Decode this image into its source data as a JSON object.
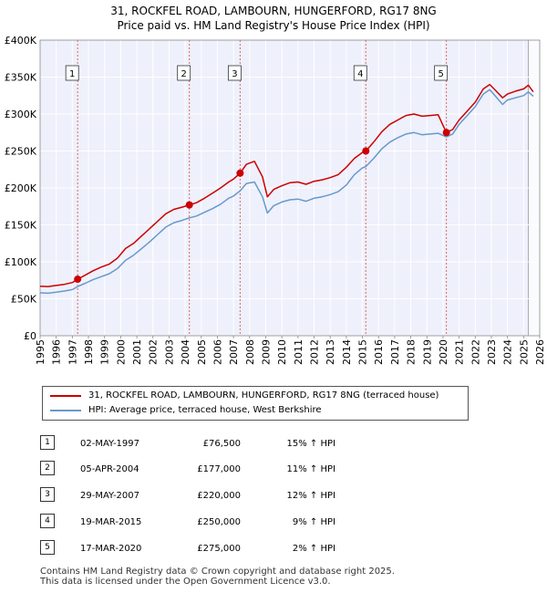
{
  "title_line1": "31, ROCKFEL ROAD, LAMBOURN, HUNGERFORD, RG17 8NG",
  "title_line2": "Price paid vs. HM Land Registry's House Price Index (HPI)",
  "legend": [
    {
      "label": "31, ROCKFEL ROAD, LAMBOURN, HUNGERFORD, RG17 8NG (terraced house)",
      "color": "#cc0000"
    },
    {
      "label": "HPI: Average price, terraced house, West Berkshire",
      "color": "#6699cc"
    }
  ],
  "sales": [
    {
      "id": "1",
      "date": "02-MAY-1997",
      "price": "£76,500",
      "hpi": "15% ↑ HPI"
    },
    {
      "id": "2",
      "date": "05-APR-2004",
      "price": "£177,000",
      "hpi": "11% ↑ HPI"
    },
    {
      "id": "3",
      "date": "29-MAY-2007",
      "price": "£220,000",
      "hpi": "12% ↑ HPI"
    },
    {
      "id": "4",
      "date": "19-MAR-2015",
      "price": "£250,000",
      "hpi": "9% ↑ HPI"
    },
    {
      "id": "5",
      "date": "17-MAR-2020",
      "price": "£275,000",
      "hpi": "2% ↑ HPI"
    }
  ],
  "footer_line1": "Contains HM Land Registry data © Crown copyright and database right 2025.",
  "footer_line2": "This data is licensed under the Open Government Licence v3.0.",
  "colors": {
    "property": "#cc0000",
    "hpi": "#6699cc",
    "plot_bg": "#eef0fb",
    "marker_line": "#dd6666"
  },
  "chart_data": {
    "type": "line",
    "title": "31, ROCKFEL ROAD, LAMBOURN, HUNGERFORD, RG17 8NG",
    "subtitle": "Price paid vs. HM Land Registry's House Price Index (HPI)",
    "xlabel": "",
    "ylabel": "",
    "xlim": [
      1995,
      2026
    ],
    "ylim": [
      0,
      400000
    ],
    "x_ticks": [
      "1995",
      "1996",
      "1997",
      "1998",
      "1999",
      "2000",
      "2001",
      "2002",
      "2003",
      "2004",
      "2005",
      "2006",
      "2007",
      "2008",
      "2009",
      "2010",
      "2011",
      "2012",
      "2013",
      "2014",
      "2015",
      "2016",
      "2017",
      "2018",
      "2019",
      "2020",
      "2021",
      "2022",
      "2023",
      "2024",
      "2025",
      "2026"
    ],
    "y_ticks": [
      {
        "value": 0,
        "label": "£0"
      },
      {
        "value": 50000,
        "label": "£50K"
      },
      {
        "value": 100000,
        "label": "£100K"
      },
      {
        "value": 150000,
        "label": "£150K"
      },
      {
        "value": 200000,
        "label": "£200K"
      },
      {
        "value": 250000,
        "label": "£250K"
      },
      {
        "value": 300000,
        "label": "£300K"
      },
      {
        "value": 350000,
        "label": "£350K"
      },
      {
        "value": 400000,
        "label": "£400K"
      }
    ],
    "grid": true,
    "series": [
      {
        "name": "31, ROCKFEL ROAD, LAMBOURN, HUNGERFORD, RG17 8NG (terraced house)",
        "x": [
          1995.0,
          1995.5,
          1996.0,
          1996.5,
          1997.0,
          1997.33,
          1997.8,
          1998.3,
          1998.8,
          1999.3,
          1999.8,
          2000.3,
          2000.8,
          2001.3,
          2001.8,
          2002.3,
          2002.8,
          2003.3,
          2003.8,
          2004.26,
          2004.7,
          2005.2,
          2005.7,
          2006.2,
          2006.7,
          2007.0,
          2007.41,
          2007.8,
          2008.3,
          2008.8,
          2009.1,
          2009.5,
          2010.0,
          2010.5,
          2011.0,
          2011.5,
          2012.0,
          2012.5,
          2013.0,
          2013.5,
          2014.0,
          2014.5,
          2015.0,
          2015.21,
          2015.7,
          2016.2,
          2016.7,
          2017.2,
          2017.7,
          2018.2,
          2018.7,
          2019.2,
          2019.7,
          2020.21,
          2020.6,
          2021.0,
          2021.5,
          2022.0,
          2022.5,
          2022.9,
          2023.3,
          2023.7,
          2024.0,
          2024.5,
          2025.0,
          2025.3,
          2025.6
        ],
        "y": [
          67000,
          66500,
          68000,
          69500,
          72000,
          76500,
          82000,
          88000,
          93000,
          97000,
          105000,
          118000,
          125000,
          135000,
          145000,
          155000,
          165000,
          171000,
          174000,
          177000,
          180000,
          186000,
          193000,
          200000,
          208000,
          212000,
          220000,
          232000,
          236000,
          215000,
          188000,
          198000,
          203000,
          207000,
          208000,
          205000,
          209000,
          211000,
          214000,
          218000,
          228000,
          240000,
          248000,
          250000,
          262000,
          276000,
          286000,
          292000,
          298000,
          300000,
          297000,
          298000,
          299000,
          275000,
          279000,
          292000,
          304000,
          316000,
          334000,
          340000,
          331000,
          322000,
          327000,
          331000,
          334000,
          339000,
          330000
        ]
      },
      {
        "name": "HPI: Average price, terraced house, West Berkshire",
        "x": [
          1995.0,
          1995.5,
          1996.0,
          1996.5,
          1997.0,
          1997.33,
          1997.8,
          1998.3,
          1998.8,
          1999.3,
          1999.8,
          2000.3,
          2000.8,
          2001.3,
          2001.8,
          2002.3,
          2002.8,
          2003.3,
          2003.8,
          2004.26,
          2004.7,
          2005.2,
          2005.7,
          2006.2,
          2006.7,
          2007.0,
          2007.41,
          2007.8,
          2008.3,
          2008.8,
          2009.1,
          2009.5,
          2010.0,
          2010.5,
          2011.0,
          2011.5,
          2012.0,
          2012.5,
          2013.0,
          2013.5,
          2014.0,
          2014.5,
          2015.0,
          2015.21,
          2015.7,
          2016.2,
          2016.7,
          2017.2,
          2017.7,
          2018.2,
          2018.7,
          2019.2,
          2019.7,
          2020.21,
          2020.6,
          2021.0,
          2021.5,
          2022.0,
          2022.5,
          2022.9,
          2023.3,
          2023.7,
          2024.0,
          2024.5,
          2025.0,
          2025.3,
          2025.6
        ],
        "y": [
          58000,
          57500,
          59000,
          60500,
          62500,
          66500,
          71000,
          76000,
          80000,
          84000,
          91000,
          102000,
          109000,
          118000,
          127000,
          137000,
          147000,
          153000,
          156000,
          159500,
          162000,
          167000,
          172000,
          178000,
          186000,
          189000,
          196000,
          206000,
          208000,
          188000,
          166000,
          176000,
          181000,
          184000,
          185000,
          182000,
          186000,
          188000,
          191000,
          195000,
          204000,
          218000,
          227000,
          229000,
          240000,
          253000,
          262000,
          268000,
          273000,
          275000,
          272000,
          273000,
          274000,
          269000,
          273000,
          286000,
          298000,
          310000,
          327000,
          333000,
          323000,
          313000,
          319000,
          322000,
          325000,
          330000,
          324000
        ]
      }
    ],
    "markers": [
      {
        "label": "1",
        "x": 1997.33,
        "y": 76500
      },
      {
        "label": "2",
        "x": 2004.26,
        "y": 177000
      },
      {
        "label": "3",
        "x": 2007.41,
        "y": 220000
      },
      {
        "label": "4",
        "x": 2015.21,
        "y": 250000
      },
      {
        "label": "5",
        "x": 2020.21,
        "y": 275000
      }
    ],
    "future_shade_from": 2025.3
  }
}
